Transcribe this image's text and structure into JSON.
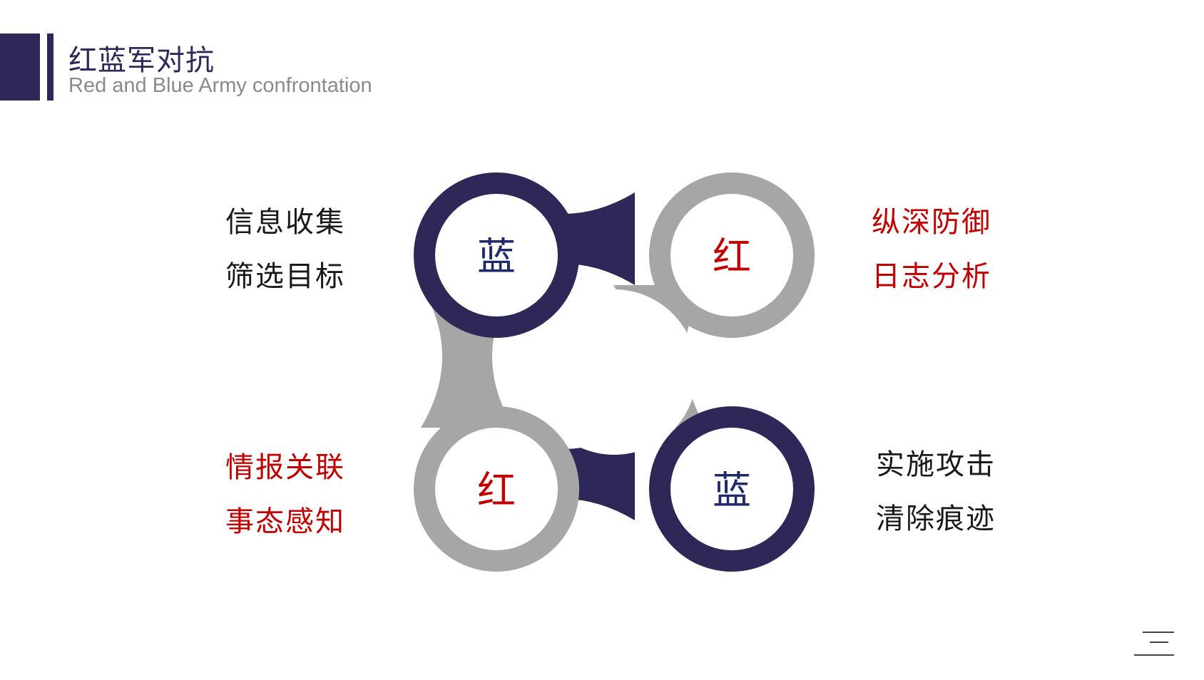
{
  "header": {
    "title": "红蓝军对抗",
    "subtitle": "Red and Blue Army confrontation"
  },
  "colors": {
    "navy": "#2e2858",
    "gray": "#a6a6a6",
    "red": "#c00000",
    "blue_text": "#1f2a6b",
    "dark_text": "#1a1a1a"
  },
  "circles": {
    "top_left": "蓝",
    "top_right": "红",
    "bottom_left": "红",
    "bottom_right": "蓝"
  },
  "text_groups": {
    "top_left": [
      "信息收集",
      "筛选目标"
    ],
    "top_right": [
      "纵深防御",
      "日志分析"
    ],
    "bottom_left": [
      "情报关联",
      "事态感知"
    ],
    "bottom_right": [
      "实施攻击",
      "清除痕迹"
    ]
  },
  "icons": {
    "corner": "menu-lines-icon"
  }
}
